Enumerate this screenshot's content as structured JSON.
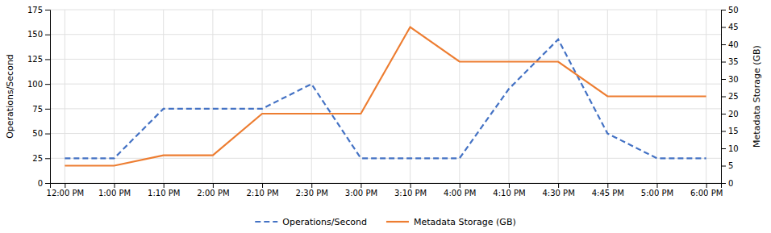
{
  "chart_data": {
    "type": "line",
    "categories": [
      "12:00 PM",
      "1:00 PM",
      "1:10 PM",
      "2:00 PM",
      "2:10 PM",
      "2:30 PM",
      "3:00 PM",
      "3:10 PM",
      "4:00 PM",
      "4:10 PM",
      "4:30 PM",
      "4:45 PM",
      "5:00 PM",
      "6:00 PM"
    ],
    "series": [
      {
        "name": "Operations/Second",
        "color": "#4472C4",
        "line_style": "dashed",
        "values": [
          25,
          25,
          75,
          75,
          75,
          100,
          25,
          25,
          25,
          95,
          145,
          50,
          25,
          25
        ]
      },
      {
        "name": "Metadata Storage (GB)",
        "color": "#ED7D31",
        "line_style": "solid",
        "axis": "y2",
        "values": [
          5,
          5,
          8,
          8,
          20,
          20,
          20,
          45,
          35,
          35,
          35,
          25,
          25,
          25
        ]
      }
    ],
    "ylabel": "Operations/Second",
    "y2label": "Metadata Storage (GB)",
    "ylim": [
      0,
      175
    ],
    "yticks": [
      0,
      25,
      50,
      75,
      100,
      125,
      150,
      175
    ],
    "y2lim": [
      0,
      50
    ],
    "y2ticks": [
      0,
      5,
      10,
      15,
      20,
      25,
      30,
      35,
      40,
      45,
      50
    ],
    "grid": true,
    "legend": "bottom"
  }
}
